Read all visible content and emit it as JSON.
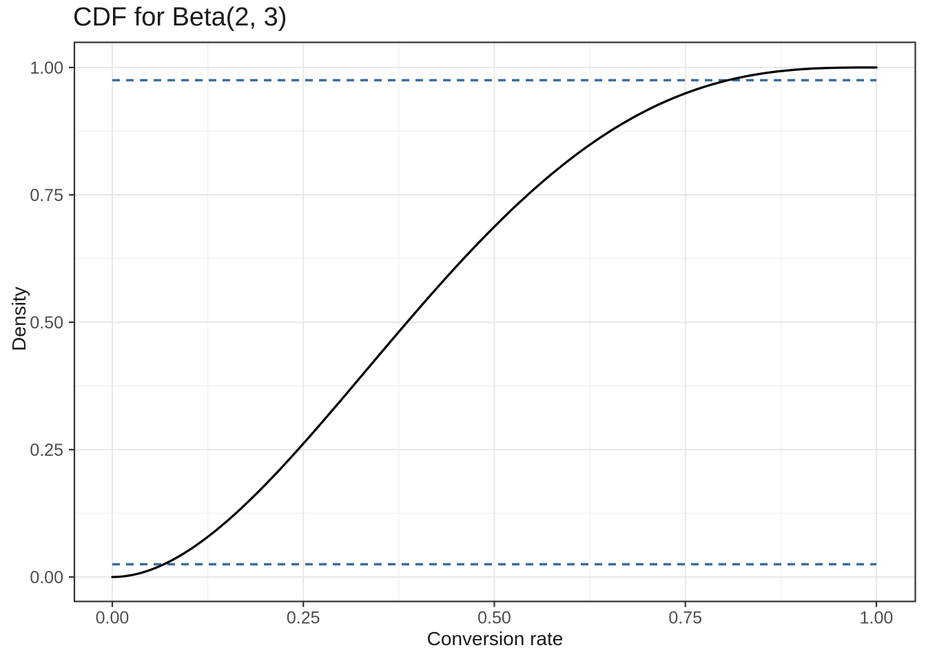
{
  "chart_data": {
    "type": "line",
    "title": "CDF for Beta(2, 3)",
    "xlabel": "Conversion rate",
    "ylabel": "Density",
    "xlim": [
      0,
      1
    ],
    "ylim": [
      0,
      1
    ],
    "grid": "major and minor gridlines on white panel with dark border",
    "legend": "none",
    "x_ticks": [
      {
        "value": 0.0,
        "label": "0.00"
      },
      {
        "value": 0.25,
        "label": "0.25"
      },
      {
        "value": 0.5,
        "label": "0.50"
      },
      {
        "value": 0.75,
        "label": "0.75"
      },
      {
        "value": 1.0,
        "label": "1.00"
      }
    ],
    "y_ticks": [
      {
        "value": 0.0,
        "label": "0.00"
      },
      {
        "value": 0.25,
        "label": "0.25"
      },
      {
        "value": 0.5,
        "label": "0.50"
      },
      {
        "value": 0.75,
        "label": "0.75"
      },
      {
        "value": 1.0,
        "label": "1.00"
      }
    ],
    "x_minor_ticks": [
      0.125,
      0.375,
      0.625,
      0.875
    ],
    "y_minor_ticks": [
      0.125,
      0.375,
      0.625,
      0.875
    ],
    "series": [
      {
        "name": "Beta(2, 3) CDF",
        "type": "line",
        "color": "#000000",
        "style": "solid",
        "function": "pbeta(x, 2, 3) = 6x^2 - 8x^3 + 3x^4",
        "coefficients": {
          "2": 6,
          "3": -8,
          "4": 3
        },
        "x": [
          0,
          0.05,
          0.1,
          0.15,
          0.2,
          0.25,
          0.3,
          0.35,
          0.4,
          0.45,
          0.5,
          0.55,
          0.6,
          0.65,
          0.7,
          0.75,
          0.8,
          0.85,
          0.9,
          0.95,
          1.0
        ],
        "y": [
          0,
          0.014,
          0.0523,
          0.1095,
          0.1808,
          0.2617,
          0.3483,
          0.437,
          0.5248,
          0.609,
          0.6875,
          0.7585,
          0.8208,
          0.8735,
          0.9163,
          0.9492,
          0.9728,
          0.988,
          0.9963,
          0.9995,
          1.0
        ]
      }
    ],
    "reference_lines": [
      {
        "orientation": "horizontal",
        "y": 0.025,
        "x_span": [
          0,
          1
        ],
        "style": "dashed",
        "color": "#3E6C9E"
      },
      {
        "orientation": "horizontal",
        "y": 0.975,
        "x_span": [
          0,
          1
        ],
        "style": "dashed",
        "color": "#3E6C9E"
      }
    ],
    "colors": {
      "background": "#FFFFFF",
      "panel_background": "#FFFFFF",
      "panel_border": "#333333",
      "grid_major": "#E8E8E8",
      "grid_minor": "#F2F2F2",
      "tick_mark": "#333333",
      "tick_label": "#4D4D4D",
      "title": "#1A1A1A",
      "axis_title": "#1A1A1A",
      "curve": "#000000",
      "dashed_line": "#3E6C9E"
    }
  }
}
